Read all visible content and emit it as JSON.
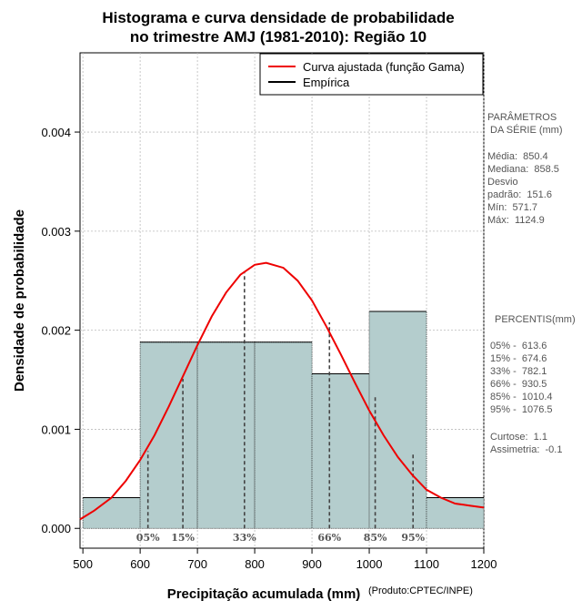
{
  "chart_data": {
    "type": "bar",
    "title": [
      "Histograma e curva densidade de probabilidade",
      "no trimestre AMJ (1981-2010): Região 10"
    ],
    "xlabel": "Precipitação acumulada (mm)",
    "ylabel": "Densidade de probabilidade",
    "credit": "(Produto:CPTEC/INPE)",
    "xlim": [
      495,
      1200
    ],
    "ylim": [
      -0.0002,
      0.0048
    ],
    "x_ticks": [
      500,
      600,
      700,
      800,
      900,
      1000,
      1100,
      1200
    ],
    "y_ticks": [
      0.0,
      0.001,
      0.002,
      0.003,
      0.004
    ],
    "y_tick_labels": [
      "0.000",
      "0.001",
      "0.002",
      "0.003",
      "0.004"
    ],
    "grid": true,
    "bins": [
      {
        "from": 500,
        "to": 600,
        "density": 0.00031
      },
      {
        "from": 600,
        "to": 700,
        "density": 0.00188
      },
      {
        "from": 700,
        "to": 800,
        "density": 0.00188
      },
      {
        "from": 800,
        "to": 900,
        "density": 0.00188
      },
      {
        "from": 900,
        "to": 1000,
        "density": 0.00156
      },
      {
        "from": 1000,
        "to": 1100,
        "density": 0.00219
      },
      {
        "from": 1100,
        "to": 1200,
        "density": 0.00031
      }
    ],
    "gamma_curve": {
      "mean": 850.4,
      "sd": 151.6,
      "points": [
        [
          495,
          9e-05
        ],
        [
          520,
          0.00018
        ],
        [
          550,
          0.00031
        ],
        [
          575,
          0.00048
        ],
        [
          600,
          0.00069
        ],
        [
          625,
          0.00094
        ],
        [
          650,
          0.00123
        ],
        [
          675,
          0.00154
        ],
        [
          700,
          0.00185
        ],
        [
          725,
          0.00214
        ],
        [
          750,
          0.00238
        ],
        [
          775,
          0.00256
        ],
        [
          800,
          0.00266
        ],
        [
          820,
          0.00268
        ],
        [
          850,
          0.00263
        ],
        [
          875,
          0.0025
        ],
        [
          900,
          0.0023
        ],
        [
          925,
          0.00204
        ],
        [
          950,
          0.00176
        ],
        [
          975,
          0.00147
        ],
        [
          1000,
          0.00119
        ],
        [
          1025,
          0.00094
        ],
        [
          1050,
          0.00072
        ],
        [
          1075,
          0.00054
        ],
        [
          1100,
          0.00039
        ],
        [
          1125,
          0.00031
        ],
        [
          1150,
          0.00025
        ],
        [
          1175,
          0.00023
        ],
        [
          1200,
          0.00021
        ]
      ]
    },
    "percentile_markers": [
      {
        "label": "05%",
        "x": 613.6,
        "y": 0.00078
      },
      {
        "label": "15%",
        "x": 674.6,
        "y": 0.00151
      },
      {
        "label": "33%",
        "x": 782.1,
        "y": 0.00258
      },
      {
        "label": "66%",
        "x": 930.5,
        "y": 0.00208
      },
      {
        "label": "85%",
        "x": 1010.4,
        "y": 0.00135
      },
      {
        "label": "95%",
        "x": 1076.5,
        "y": 0.00077
      }
    ],
    "legend": {
      "placement": "top-right",
      "entries": [
        {
          "label": "Curva ajustada (função Gama)",
          "color": "#ee0000"
        },
        {
          "label": "Empírica",
          "color": "#000000"
        }
      ]
    },
    "colors": {
      "bar_fill": "#b4cdcd",
      "curve": "#ee0000",
      "grid": "#bbbbbb"
    }
  },
  "side_panel": {
    "params_title": [
      "PARÂMETROS",
      " DA SÉRIE (mm)"
    ],
    "params": [
      "Média:  850.4",
      "Mediana:  858.5",
      "Desvio",
      "padrão:  151.6",
      "Mín:  571.7",
      "Máx:  1124.9"
    ],
    "percentis_title": "PERCENTIS(mm)",
    "percentis": [
      "05% -  613.6",
      "15% -  674.6",
      "33% -  782.1",
      "66% -  930.5",
      "85% -  1010.4",
      "95% -  1076.5"
    ],
    "stats": [
      "Curtose:  1.1",
      "Assimetria:  -0.1"
    ]
  }
}
